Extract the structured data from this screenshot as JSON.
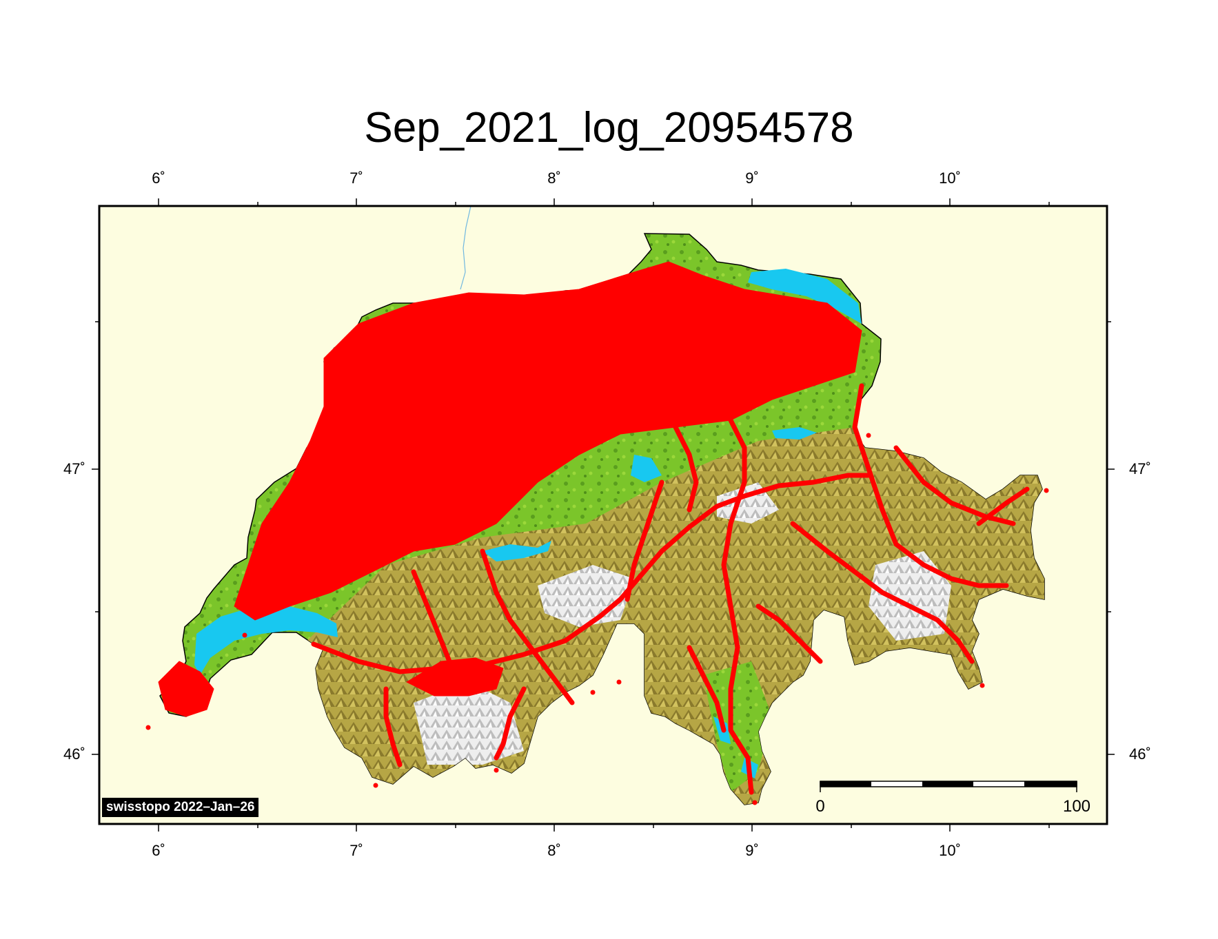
{
  "map": {
    "title": "Sep_2021_log_20954578",
    "lon_ticks": [
      "6˚",
      "7˚",
      "8˚",
      "9˚",
      "10˚"
    ],
    "lat_ticks": [
      "47˚",
      "46˚"
    ],
    "credit": "swisstopo 2022–Jan–26",
    "scale_bar": {
      "start_label": "0",
      "end_label": "100"
    },
    "colors": {
      "background": "#fdfde0",
      "lakes": "#18c8f0",
      "lowland": "#7bc52a",
      "alpine": "#b0a040",
      "high_peaks": "#e8e8e8",
      "track_points": "#ff0000",
      "frame": "#000000"
    }
  }
}
